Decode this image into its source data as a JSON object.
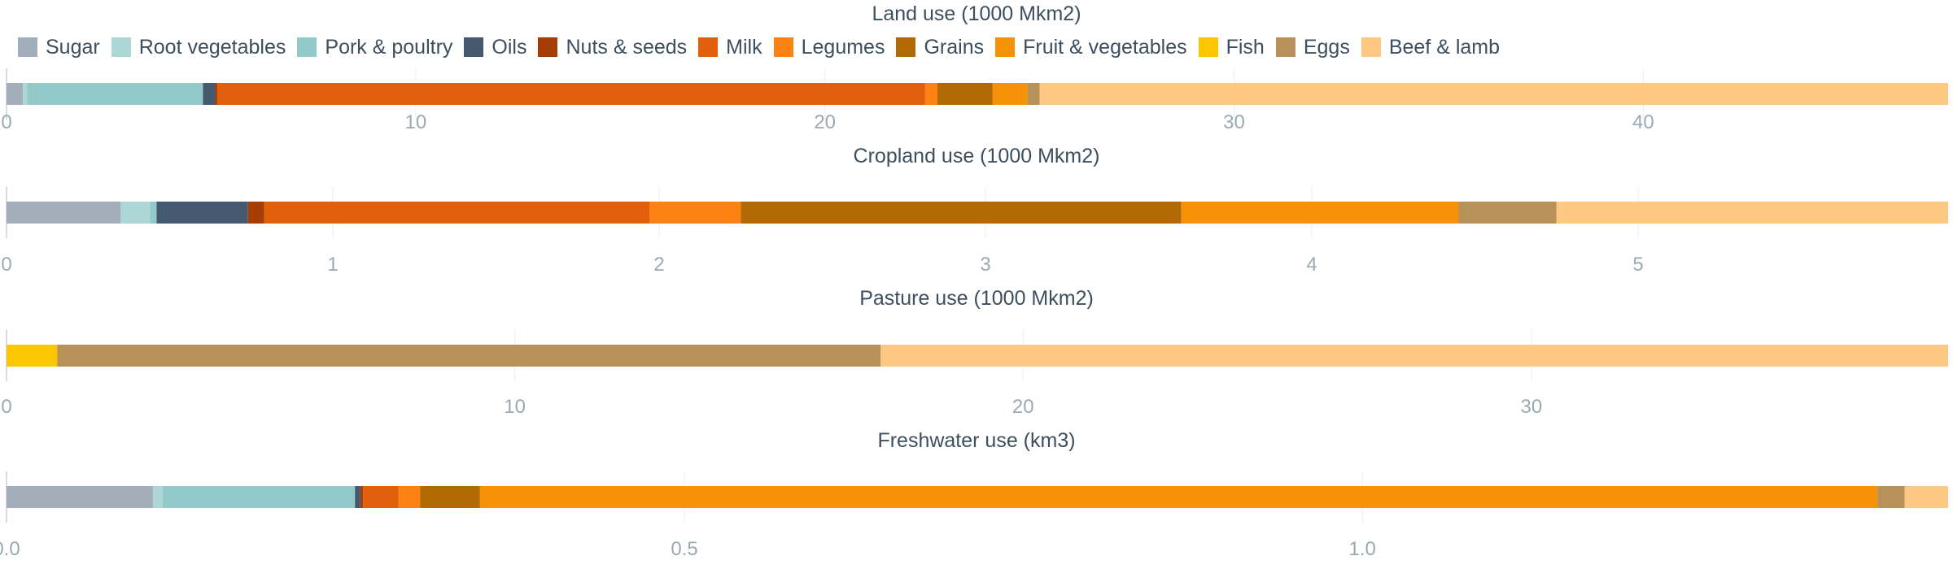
{
  "categories": [
    "Sugar",
    "Root vegetables",
    "Pork & poultry",
    "Oils",
    "Nuts & seeds",
    "Milk",
    "Legumes",
    "Grains",
    "Fruit & vegetables",
    "Fish",
    "Eggs",
    "Beef & lamb"
  ],
  "colors": {
    "Sugar": "#a2aeb9",
    "Root vegetables": "#acd7d6",
    "Pork & poultry": "#94c9ca",
    "Oils": "#455a6e",
    "Nuts & seeds": "#a43e04",
    "Milk": "#e0600c",
    "Legumes": "#fb8213",
    "Grains": "#b26a05",
    "Fruit & vegetables": "#f59208",
    "Fish": "#fcc600",
    "Eggs": "#b8915a",
    "Beef & lamb": "#fdc882"
  },
  "chart_data": [
    {
      "type": "bar",
      "orientation": "horizontal",
      "stacked": true,
      "title": "Land use (1000 Mkm2)",
      "categories": [
        "Sugar",
        "Root vegetables",
        "Pork & poultry",
        "Oils",
        "Nuts & seeds",
        "Milk",
        "Legumes",
        "Grains",
        "Fruit & vegetables",
        "Fish",
        "Eggs",
        "Beef & lamb"
      ],
      "values": [
        0.4,
        0.1,
        4.3,
        0.3,
        0.05,
        17.3,
        0.3,
        1.35,
        0.85,
        0.0,
        0.3,
        22.2
      ],
      "xlim": [
        0,
        47.45
      ],
      "ticks": [
        0,
        10,
        20,
        30,
        40
      ],
      "tick_labels": [
        "0",
        "10",
        "20",
        "30",
        "40"
      ],
      "grid": true
    },
    {
      "type": "bar",
      "orientation": "horizontal",
      "stacked": true,
      "title": "Cropland use (1000 Mkm2)",
      "categories": [
        "Sugar",
        "Root vegetables",
        "Pork & poultry",
        "Oils",
        "Nuts & seeds",
        "Milk",
        "Legumes",
        "Grains",
        "Fruit & vegetables",
        "Fish",
        "Eggs",
        "Beef & lamb"
      ],
      "values": [
        0.35,
        0.09,
        0.02,
        0.28,
        0.05,
        1.18,
        0.28,
        1.35,
        0.85,
        0.0,
        0.3,
        1.2
      ],
      "xlim": [
        0,
        5.95
      ],
      "ticks": [
        0,
        1,
        2,
        3,
        4,
        5
      ],
      "tick_labels": [
        "0",
        "1",
        "2",
        "3",
        "4",
        "5"
      ],
      "grid": true
    },
    {
      "type": "bar",
      "orientation": "horizontal",
      "stacked": true,
      "title": "Pasture use (1000 Mkm2)",
      "categories": [
        "Sugar",
        "Root vegetables",
        "Pork & poultry",
        "Oils",
        "Nuts & seeds",
        "Milk",
        "Legumes",
        "Grains",
        "Fruit & vegetables",
        "Fish",
        "Eggs",
        "Beef & lamb"
      ],
      "values": [
        0.0,
        0.0,
        0.0,
        0.0,
        0.0,
        0.0,
        0.0,
        0.0,
        0.0,
        1.0,
        16.2,
        21.0
      ],
      "xlim": [
        0,
        38.2
      ],
      "ticks": [
        0,
        10,
        20,
        30
      ],
      "tick_labels": [
        "0",
        "10",
        "20",
        "30"
      ],
      "grid": true
    },
    {
      "type": "bar",
      "orientation": "horizontal",
      "stacked": true,
      "title": "Freshwater use (km3)",
      "categories": [
        "Sugar",
        "Root vegetables",
        "Pork & poultry",
        "Oils",
        "Nuts & seeds",
        "Milk",
        "Legumes",
        "Grains",
        "Fruit & vegetables",
        "Fish",
        "Eggs",
        "Beef & lamb"
      ],
      "values": [
        0.108,
        0.007,
        0.142,
        0.004,
        0.002,
        0.026,
        0.016,
        0.044,
        1.031,
        0.0,
        0.02,
        0.032
      ],
      "xlim": [
        0,
        1.432
      ],
      "ticks": [
        0.0,
        0.5,
        1.0
      ],
      "tick_labels": [
        "0.0",
        "0.5",
        "1.0"
      ],
      "grid": true
    }
  ]
}
